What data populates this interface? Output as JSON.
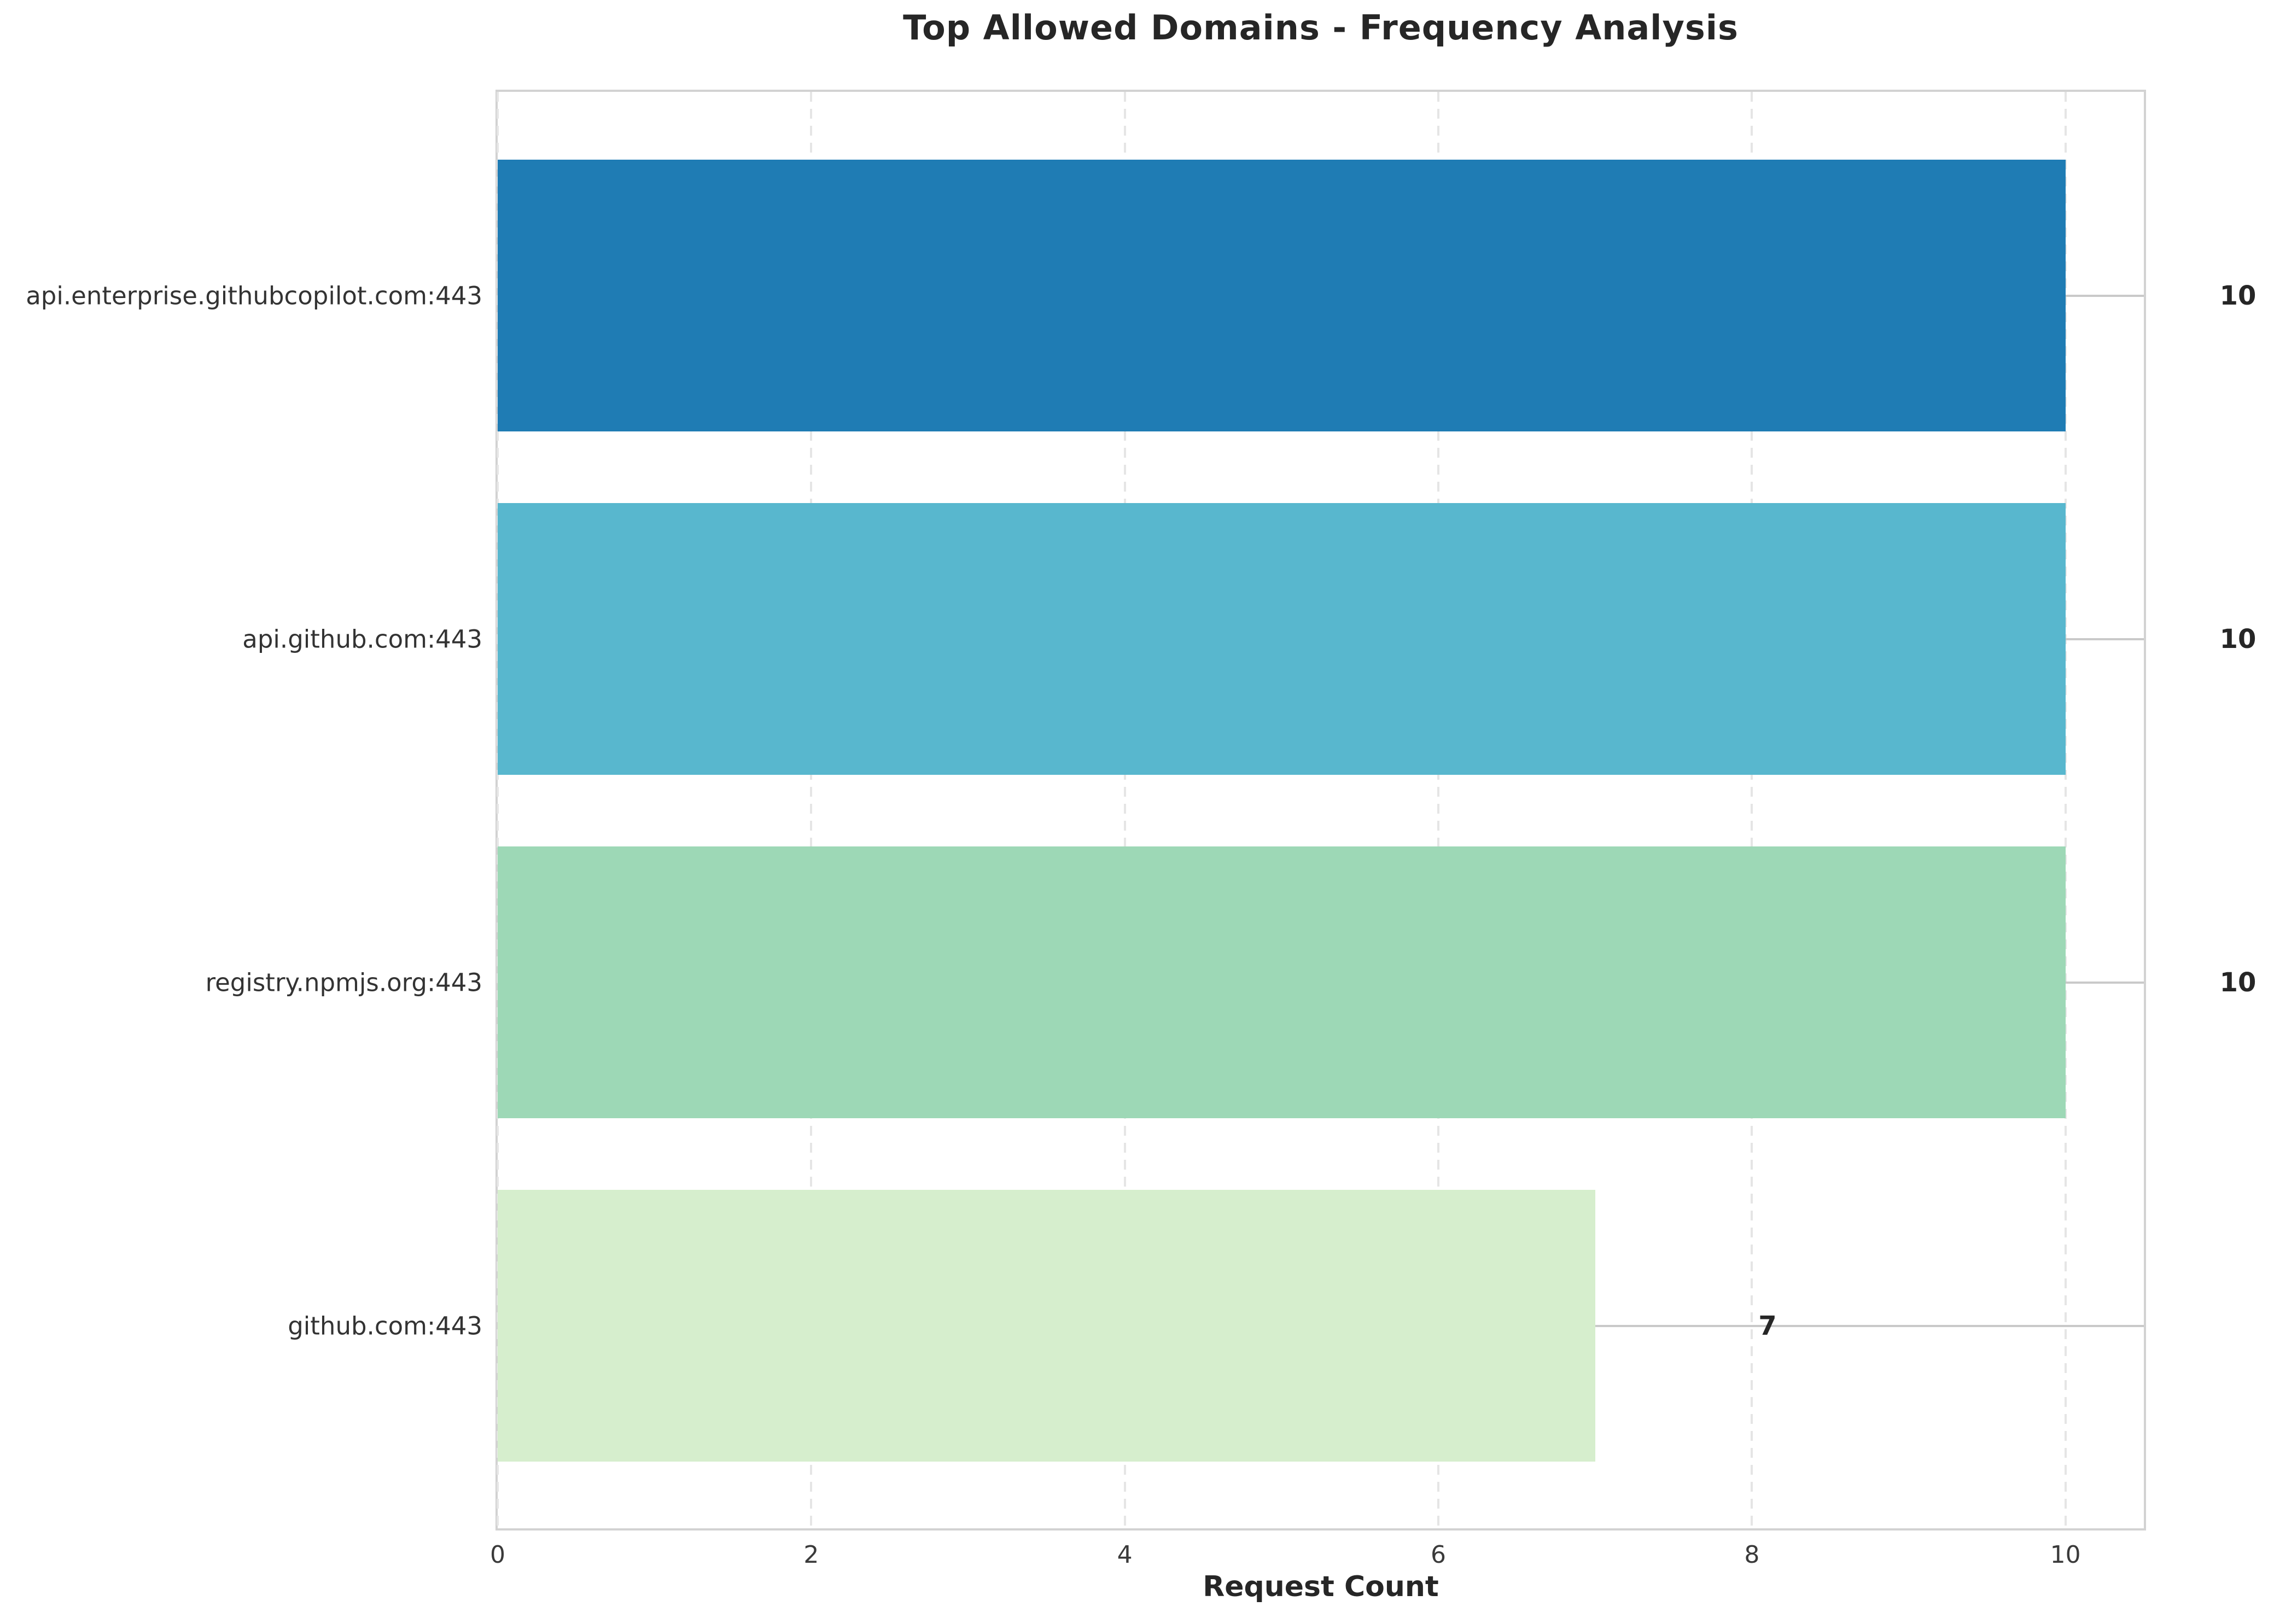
{
  "chart_data": {
    "type": "bar",
    "orientation": "horizontal",
    "title": "Top Allowed Domains - Frequency Analysis",
    "xlabel": "Request Count",
    "categories": [
      "api.enterprise.githubcopilot.com:443",
      "api.github.com:443",
      "registry.npmjs.org:443",
      "github.com:443"
    ],
    "values": [
      10,
      10,
      10,
      7
    ],
    "value_labels": [
      "10",
      "10",
      "10",
      "7"
    ],
    "bar_colors": [
      "#1f7cb4",
      "#58b7ce",
      "#9dd8b6",
      "#d6eecd"
    ],
    "xticks": [
      0,
      2,
      4,
      6,
      8,
      10
    ],
    "xtick_labels": [
      "0",
      "2",
      "4",
      "6",
      "8",
      "10"
    ],
    "xlim": [
      0,
      10.5
    ],
    "grid": {
      "x": "dashed",
      "y": "solid"
    },
    "legend": null,
    "style": {
      "spine_color": "#d2d2d2",
      "vgrid_color": "#e5e5e5",
      "hgrid_color": "#c9c9c9",
      "text_color": "#262626",
      "tick_color": "#3a3a3a",
      "background": "#ffffff"
    }
  }
}
